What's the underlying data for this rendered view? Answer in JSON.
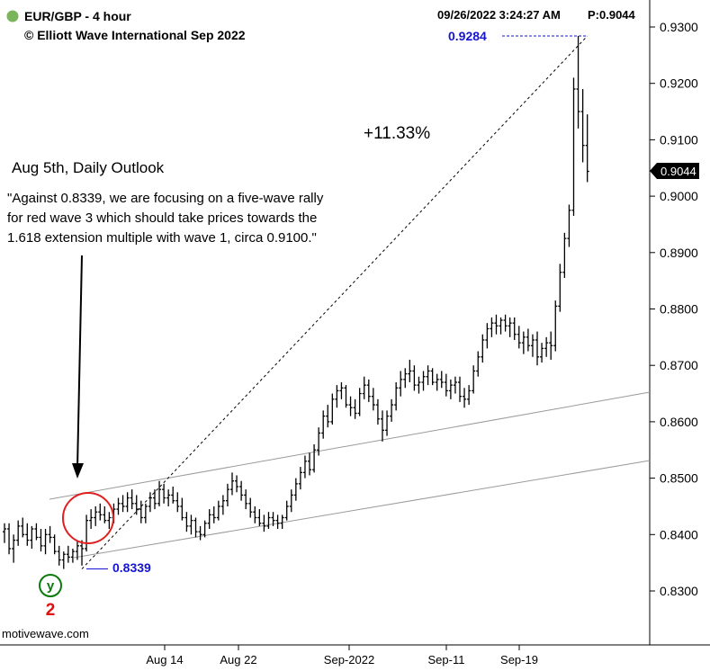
{
  "header": {
    "symbol": "EUR/GBP - 4 hour",
    "copyright": "© Elliott Wave International Sep 2022",
    "datetime": "09/26/2022 3:24:27 AM",
    "price_readout": "P:0.9044",
    "status_dot_color": "#7ab55c"
  },
  "annotations": {
    "outlook_title": "Aug 5th, Daily Outlook",
    "quote_lines": [
      "\"Against 0.8339, we are focusing on a five-wave rally",
      "for red wave 3 which should take prices towards the",
      "1.618 extension multiple with wave 1, circa 0.9100.\""
    ],
    "gain": "+11.33%",
    "high_label": "0.9284",
    "low_label": "0.8339",
    "wave_y": "y",
    "wave_2": "2",
    "watermark": "motivewave.com",
    "last_price": "0.9044"
  },
  "colors": {
    "label_blue": "#1414d2",
    "wave_green": "#0a7a0a",
    "wave_red": "#e01010",
    "circle_red": "#e02020",
    "bars": "#000000"
  },
  "chart_data": {
    "type": "ohlc",
    "title": "EUR/GBP - 4 hour",
    "ylim": [
      0.828,
      0.932
    ],
    "y_ticks": [
      "0.8300",
      "0.8400",
      "0.8500",
      "0.8600",
      "0.8700",
      "0.8800",
      "0.8900",
      "0.9000",
      "0.9100",
      "0.9200",
      "0.9300"
    ],
    "x_ticks": [
      "Aug 14",
      "Aug 22",
      "Sep-2022",
      "Sep-11",
      "Sep-19"
    ],
    "grid": false,
    "bar_step": 5.06,
    "trend_start": {
      "bar": 17,
      "value": 0.8339
    },
    "trend_end": {
      "bar": 128,
      "value": 0.9284
    },
    "bars": [
      {
        "o": 0.8405,
        "h": 0.842,
        "l": 0.8385,
        "c": 0.841
      },
      {
        "o": 0.841,
        "h": 0.842,
        "l": 0.8365,
        "c": 0.8375
      },
      {
        "o": 0.8375,
        "h": 0.84,
        "l": 0.835,
        "c": 0.839
      },
      {
        "o": 0.839,
        "h": 0.8425,
        "l": 0.838,
        "c": 0.8415
      },
      {
        "o": 0.8415,
        "h": 0.843,
        "l": 0.8395,
        "c": 0.84
      },
      {
        "o": 0.84,
        "h": 0.842,
        "l": 0.838,
        "c": 0.839
      },
      {
        "o": 0.839,
        "h": 0.8415,
        "l": 0.8375,
        "c": 0.841
      },
      {
        "o": 0.841,
        "h": 0.842,
        "l": 0.839,
        "c": 0.8395
      },
      {
        "o": 0.8395,
        "h": 0.841,
        "l": 0.837,
        "c": 0.838
      },
      {
        "o": 0.838,
        "h": 0.841,
        "l": 0.8365,
        "c": 0.84
      },
      {
        "o": 0.84,
        "h": 0.8415,
        "l": 0.8385,
        "c": 0.8395
      },
      {
        "o": 0.8395,
        "h": 0.84,
        "l": 0.8365,
        "c": 0.837
      },
      {
        "o": 0.837,
        "h": 0.838,
        "l": 0.8345,
        "c": 0.8355
      },
      {
        "o": 0.8355,
        "h": 0.837,
        "l": 0.8339,
        "c": 0.8365
      },
      {
        "o": 0.8365,
        "h": 0.838,
        "l": 0.835,
        "c": 0.836
      },
      {
        "o": 0.836,
        "h": 0.8375,
        "l": 0.835,
        "c": 0.837
      },
      {
        "o": 0.837,
        "h": 0.839,
        "l": 0.8355,
        "c": 0.838
      },
      {
        "o": 0.838,
        "h": 0.839,
        "l": 0.8345,
        "c": 0.8375
      },
      {
        "o": 0.8375,
        "h": 0.8435,
        "l": 0.837,
        "c": 0.8425
      },
      {
        "o": 0.8425,
        "h": 0.8445,
        "l": 0.841,
        "c": 0.843
      },
      {
        "o": 0.843,
        "h": 0.845,
        "l": 0.8415,
        "c": 0.844
      },
      {
        "o": 0.844,
        "h": 0.8455,
        "l": 0.8425,
        "c": 0.8435
      },
      {
        "o": 0.8435,
        "h": 0.845,
        "l": 0.842,
        "c": 0.8425
      },
      {
        "o": 0.8425,
        "h": 0.844,
        "l": 0.841,
        "c": 0.843
      },
      {
        "o": 0.843,
        "h": 0.8455,
        "l": 0.842,
        "c": 0.8445
      },
      {
        "o": 0.8445,
        "h": 0.8465,
        "l": 0.8435,
        "c": 0.8455
      },
      {
        "o": 0.8455,
        "h": 0.847,
        "l": 0.844,
        "c": 0.845
      },
      {
        "o": 0.845,
        "h": 0.8475,
        "l": 0.844,
        "c": 0.8465
      },
      {
        "o": 0.8465,
        "h": 0.848,
        "l": 0.8445,
        "c": 0.8455
      },
      {
        "o": 0.8455,
        "h": 0.847,
        "l": 0.8435,
        "c": 0.8445
      },
      {
        "o": 0.8445,
        "h": 0.846,
        "l": 0.842,
        "c": 0.843
      },
      {
        "o": 0.843,
        "h": 0.8455,
        "l": 0.842,
        "c": 0.845
      },
      {
        "o": 0.845,
        "h": 0.8475,
        "l": 0.844,
        "c": 0.8465
      },
      {
        "o": 0.8465,
        "h": 0.848,
        "l": 0.8445,
        "c": 0.8455
      },
      {
        "o": 0.8455,
        "h": 0.8495,
        "l": 0.845,
        "c": 0.848
      },
      {
        "o": 0.848,
        "h": 0.849,
        "l": 0.8455,
        "c": 0.8465
      },
      {
        "o": 0.8465,
        "h": 0.848,
        "l": 0.845,
        "c": 0.847
      },
      {
        "o": 0.847,
        "h": 0.8485,
        "l": 0.8455,
        "c": 0.846
      },
      {
        "o": 0.846,
        "h": 0.8475,
        "l": 0.844,
        "c": 0.845
      },
      {
        "o": 0.845,
        "h": 0.8465,
        "l": 0.8425,
        "c": 0.843
      },
      {
        "o": 0.843,
        "h": 0.844,
        "l": 0.8405,
        "c": 0.8415
      },
      {
        "o": 0.8415,
        "h": 0.8435,
        "l": 0.84,
        "c": 0.8425
      },
      {
        "o": 0.8425,
        "h": 0.843,
        "l": 0.8395,
        "c": 0.8405
      },
      {
        "o": 0.8405,
        "h": 0.8415,
        "l": 0.839,
        "c": 0.84
      },
      {
        "o": 0.84,
        "h": 0.8425,
        "l": 0.8395,
        "c": 0.842
      },
      {
        "o": 0.842,
        "h": 0.8445,
        "l": 0.841,
        "c": 0.8435
      },
      {
        "o": 0.8435,
        "h": 0.845,
        "l": 0.842,
        "c": 0.843
      },
      {
        "o": 0.843,
        "h": 0.846,
        "l": 0.8425,
        "c": 0.845
      },
      {
        "o": 0.845,
        "h": 0.847,
        "l": 0.8435,
        "c": 0.846
      },
      {
        "o": 0.846,
        "h": 0.849,
        "l": 0.845,
        "c": 0.848
      },
      {
        "o": 0.848,
        "h": 0.851,
        "l": 0.847,
        "c": 0.8495
      },
      {
        "o": 0.8495,
        "h": 0.8505,
        "l": 0.8475,
        "c": 0.8485
      },
      {
        "o": 0.8485,
        "h": 0.8495,
        "l": 0.846,
        "c": 0.847
      },
      {
        "o": 0.847,
        "h": 0.848,
        "l": 0.8445,
        "c": 0.8455
      },
      {
        "o": 0.8455,
        "h": 0.8465,
        "l": 0.843,
        "c": 0.844
      },
      {
        "o": 0.844,
        "h": 0.845,
        "l": 0.842,
        "c": 0.843
      },
      {
        "o": 0.843,
        "h": 0.8445,
        "l": 0.8415,
        "c": 0.842
      },
      {
        "o": 0.842,
        "h": 0.8435,
        "l": 0.8405,
        "c": 0.8415
      },
      {
        "o": 0.8415,
        "h": 0.844,
        "l": 0.841,
        "c": 0.843
      },
      {
        "o": 0.843,
        "h": 0.844,
        "l": 0.8415,
        "c": 0.8425
      },
      {
        "o": 0.8425,
        "h": 0.8435,
        "l": 0.841,
        "c": 0.842
      },
      {
        "o": 0.842,
        "h": 0.8435,
        "l": 0.841,
        "c": 0.843
      },
      {
        "o": 0.843,
        "h": 0.846,
        "l": 0.8425,
        "c": 0.845
      },
      {
        "o": 0.845,
        "h": 0.848,
        "l": 0.844,
        "c": 0.847
      },
      {
        "o": 0.847,
        "h": 0.85,
        "l": 0.846,
        "c": 0.849
      },
      {
        "o": 0.849,
        "h": 0.852,
        "l": 0.848,
        "c": 0.851
      },
      {
        "o": 0.851,
        "h": 0.854,
        "l": 0.85,
        "c": 0.853
      },
      {
        "o": 0.853,
        "h": 0.8545,
        "l": 0.8505,
        "c": 0.8515
      },
      {
        "o": 0.8515,
        "h": 0.856,
        "l": 0.851,
        "c": 0.855
      },
      {
        "o": 0.855,
        "h": 0.859,
        "l": 0.854,
        "c": 0.858
      },
      {
        "o": 0.858,
        "h": 0.862,
        "l": 0.857,
        "c": 0.861
      },
      {
        "o": 0.861,
        "h": 0.863,
        "l": 0.859,
        "c": 0.86
      },
      {
        "o": 0.86,
        "h": 0.865,
        "l": 0.8595,
        "c": 0.864
      },
      {
        "o": 0.864,
        "h": 0.8665,
        "l": 0.8625,
        "c": 0.8655
      },
      {
        "o": 0.8655,
        "h": 0.867,
        "l": 0.864,
        "c": 0.866
      },
      {
        "o": 0.866,
        "h": 0.8665,
        "l": 0.8625,
        "c": 0.863
      },
      {
        "o": 0.863,
        "h": 0.8645,
        "l": 0.861,
        "c": 0.8625
      },
      {
        "o": 0.8625,
        "h": 0.864,
        "l": 0.8605,
        "c": 0.8615
      },
      {
        "o": 0.8615,
        "h": 0.866,
        "l": 0.861,
        "c": 0.865
      },
      {
        "o": 0.865,
        "h": 0.868,
        "l": 0.864,
        "c": 0.8665
      },
      {
        "o": 0.8665,
        "h": 0.8675,
        "l": 0.8635,
        "c": 0.8645
      },
      {
        "o": 0.8645,
        "h": 0.866,
        "l": 0.862,
        "c": 0.863
      },
      {
        "o": 0.863,
        "h": 0.864,
        "l": 0.8595,
        "c": 0.8605
      },
      {
        "o": 0.8605,
        "h": 0.862,
        "l": 0.8565,
        "c": 0.8585
      },
      {
        "o": 0.8585,
        "h": 0.862,
        "l": 0.8575,
        "c": 0.861
      },
      {
        "o": 0.861,
        "h": 0.864,
        "l": 0.86,
        "c": 0.863
      },
      {
        "o": 0.863,
        "h": 0.867,
        "l": 0.862,
        "c": 0.866
      },
      {
        "o": 0.866,
        "h": 0.869,
        "l": 0.8645,
        "c": 0.8675
      },
      {
        "o": 0.8675,
        "h": 0.8695,
        "l": 0.866,
        "c": 0.8685
      },
      {
        "o": 0.8685,
        "h": 0.871,
        "l": 0.867,
        "c": 0.869
      },
      {
        "o": 0.869,
        "h": 0.87,
        "l": 0.8655,
        "c": 0.8665
      },
      {
        "o": 0.8665,
        "h": 0.868,
        "l": 0.865,
        "c": 0.867
      },
      {
        "o": 0.867,
        "h": 0.869,
        "l": 0.8655,
        "c": 0.868
      },
      {
        "o": 0.868,
        "h": 0.87,
        "l": 0.8665,
        "c": 0.869
      },
      {
        "o": 0.869,
        "h": 0.8695,
        "l": 0.8665,
        "c": 0.867
      },
      {
        "o": 0.867,
        "h": 0.8685,
        "l": 0.8655,
        "c": 0.8675
      },
      {
        "o": 0.8675,
        "h": 0.869,
        "l": 0.866,
        "c": 0.867
      },
      {
        "o": 0.867,
        "h": 0.8685,
        "l": 0.8645,
        "c": 0.8655
      },
      {
        "o": 0.8655,
        "h": 0.8675,
        "l": 0.864,
        "c": 0.8665
      },
      {
        "o": 0.8665,
        "h": 0.868,
        "l": 0.865,
        "c": 0.867
      },
      {
        "o": 0.867,
        "h": 0.868,
        "l": 0.8635,
        "c": 0.8645
      },
      {
        "o": 0.8645,
        "h": 0.866,
        "l": 0.8625,
        "c": 0.864
      },
      {
        "o": 0.864,
        "h": 0.8665,
        "l": 0.863,
        "c": 0.8655
      },
      {
        "o": 0.8655,
        "h": 0.87,
        "l": 0.865,
        "c": 0.869
      },
      {
        "o": 0.869,
        "h": 0.8725,
        "l": 0.868,
        "c": 0.8715
      },
      {
        "o": 0.8715,
        "h": 0.8755,
        "l": 0.8705,
        "c": 0.8745
      },
      {
        "o": 0.8745,
        "h": 0.8775,
        "l": 0.873,
        "c": 0.8765
      },
      {
        "o": 0.8765,
        "h": 0.8785,
        "l": 0.875,
        "c": 0.8775
      },
      {
        "o": 0.8775,
        "h": 0.879,
        "l": 0.8755,
        "c": 0.877
      },
      {
        "o": 0.877,
        "h": 0.8785,
        "l": 0.8755,
        "c": 0.878
      },
      {
        "o": 0.878,
        "h": 0.879,
        "l": 0.876,
        "c": 0.877
      },
      {
        "o": 0.877,
        "h": 0.8785,
        "l": 0.875,
        "c": 0.8775
      },
      {
        "o": 0.8775,
        "h": 0.8785,
        "l": 0.8745,
        "c": 0.8755
      },
      {
        "o": 0.8755,
        "h": 0.877,
        "l": 0.873,
        "c": 0.874
      },
      {
        "o": 0.874,
        "h": 0.876,
        "l": 0.872,
        "c": 0.875
      },
      {
        "o": 0.875,
        "h": 0.8765,
        "l": 0.8725,
        "c": 0.8735
      },
      {
        "o": 0.8735,
        "h": 0.8755,
        "l": 0.8715,
        "c": 0.8745
      },
      {
        "o": 0.8745,
        "h": 0.876,
        "l": 0.87,
        "c": 0.8715
      },
      {
        "o": 0.8715,
        "h": 0.874,
        "l": 0.8705,
        "c": 0.873
      },
      {
        "o": 0.873,
        "h": 0.875,
        "l": 0.8715,
        "c": 0.874
      },
      {
        "o": 0.874,
        "h": 0.876,
        "l": 0.871,
        "c": 0.8735
      },
      {
        "o": 0.8735,
        "h": 0.8815,
        "l": 0.8725,
        "c": 0.8805
      },
      {
        "o": 0.8805,
        "h": 0.888,
        "l": 0.8795,
        "c": 0.8865
      },
      {
        "o": 0.8865,
        "h": 0.8935,
        "l": 0.8855,
        "c": 0.8925
      },
      {
        "o": 0.8925,
        "h": 0.8985,
        "l": 0.891,
        "c": 0.8975
      },
      {
        "o": 0.8975,
        "h": 0.921,
        "l": 0.8965,
        "c": 0.919
      },
      {
        "o": 0.919,
        "h": 0.9284,
        "l": 0.912,
        "c": 0.915
      },
      {
        "o": 0.915,
        "h": 0.919,
        "l": 0.906,
        "c": 0.909
      },
      {
        "o": 0.909,
        "h": 0.9145,
        "l": 0.9025,
        "c": 0.9044
      }
    ]
  }
}
